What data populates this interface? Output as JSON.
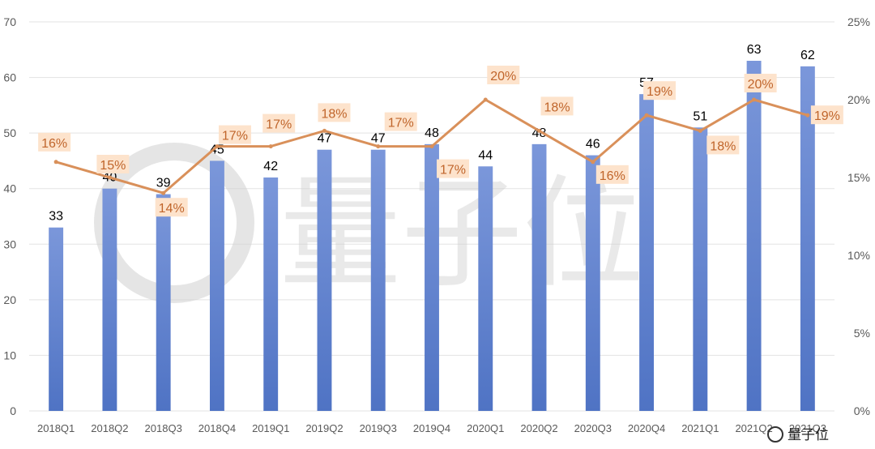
{
  "chart_data": {
    "type": "bar",
    "categories": [
      "2018Q1",
      "2018Q2",
      "2018Q3",
      "2018Q4",
      "2019Q1",
      "2019Q2",
      "2019Q3",
      "2019Q4",
      "2020Q1",
      "2020Q2",
      "2020Q3",
      "2020Q4",
      "2021Q1",
      "2021Q2",
      "2021Q3"
    ],
    "series": [
      {
        "type": "bar",
        "axis": "left",
        "values": [
          33,
          40,
          39,
          45,
          42,
          47,
          47,
          48,
          44,
          48,
          46,
          57,
          51,
          63,
          62
        ],
        "color": "#4f73c4"
      },
      {
        "type": "line",
        "axis": "right",
        "values": [
          16,
          15,
          14,
          17,
          17,
          18,
          17,
          17,
          20,
          18,
          16,
          19,
          18,
          20,
          19
        ],
        "labels": [
          "16%",
          "15%",
          "14%",
          "17%",
          "17%",
          "18%",
          "17%",
          "17%",
          "20%",
          "18%",
          "16%",
          "19%",
          "18%",
          "20%",
          "19%"
        ],
        "color": "#d9905a"
      }
    ],
    "ylim": [
      0,
      70
    ],
    "y_ticks": [
      "0",
      "10",
      "20",
      "30",
      "40",
      "50",
      "60",
      "70"
    ],
    "y2lim": [
      0,
      25
    ],
    "y2_ticks": [
      "0%",
      "5%",
      "10%",
      "15%",
      "20%",
      "25%"
    ],
    "grid": true
  },
  "watermark": {
    "text": "量子位",
    "credit": "量子位"
  },
  "colors": {
    "bar": "#4f73c4",
    "line": "#d9905a",
    "label_bg": "#fde3cc"
  }
}
